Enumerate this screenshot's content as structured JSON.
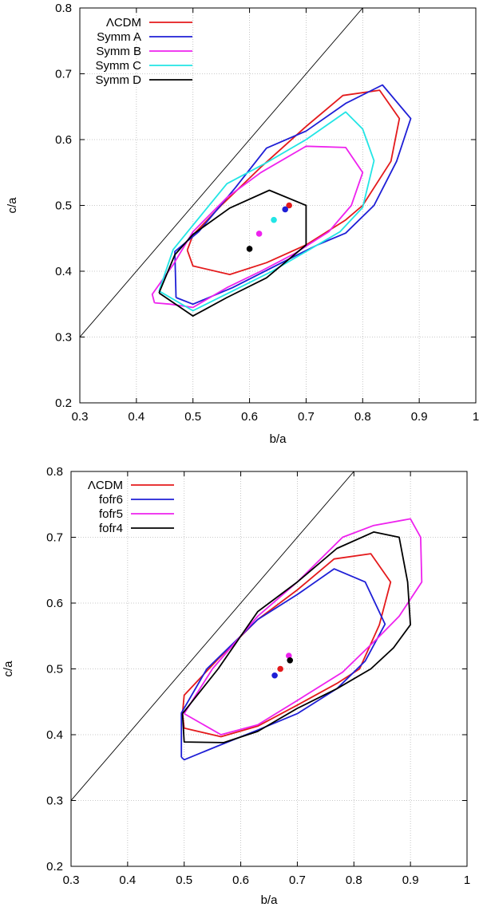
{
  "chart_data": [
    {
      "type": "line",
      "xlabel": "b/a",
      "ylabel": "c/a",
      "xlim": [
        0.3,
        1.0
      ],
      "ylim": [
        0.2,
        0.8
      ],
      "xticks": [
        "0.3",
        "0.4",
        "0.5",
        "0.6",
        "0.7",
        "0.8",
        "0.9",
        "1"
      ],
      "yticks": [
        "0.2",
        "0.3",
        "0.4",
        "0.5",
        "0.6",
        "0.7",
        "0.8"
      ],
      "grid": true,
      "legend_position": "top-left",
      "reference_line": {
        "x": [
          0.3,
          0.8
        ],
        "y": [
          0.3,
          0.8
        ]
      },
      "series": [
        {
          "name": "ΛCDM",
          "color": "#e41a1c",
          "contour": [
            [
              0.49,
              0.432
            ],
            [
              0.5,
              0.408
            ],
            [
              0.565,
              0.395
            ],
            [
              0.63,
              0.413
            ],
            [
              0.7,
              0.44
            ],
            [
              0.77,
              0.478
            ],
            [
              0.8,
              0.5
            ],
            [
              0.85,
              0.567
            ],
            [
              0.865,
              0.632
            ],
            [
              0.83,
              0.675
            ],
            [
              0.765,
              0.667
            ],
            [
              0.7,
              0.62
            ],
            [
              0.62,
              0.558
            ],
            [
              0.55,
              0.5
            ],
            [
              0.5,
              0.455
            ],
            [
              0.49,
              0.432
            ]
          ],
          "center": [
            0.67,
            0.5
          ]
        },
        {
          "name": "Symm A",
          "color": "#1f1fd6",
          "contour": [
            [
              0.47,
              0.36
            ],
            [
              0.5,
              0.35
            ],
            [
              0.57,
              0.375
            ],
            [
              0.65,
              0.41
            ],
            [
              0.72,
              0.44
            ],
            [
              0.77,
              0.458
            ],
            [
              0.82,
              0.5
            ],
            [
              0.86,
              0.567
            ],
            [
              0.885,
              0.632
            ],
            [
              0.835,
              0.683
            ],
            [
              0.77,
              0.655
            ],
            [
              0.7,
              0.613
            ],
            [
              0.63,
              0.587
            ],
            [
              0.575,
              0.527
            ],
            [
              0.51,
              0.46
            ],
            [
              0.468,
              0.43
            ],
            [
              0.47,
              0.36
            ]
          ],
          "center": [
            0.663,
            0.494
          ]
        },
        {
          "name": "Symm B",
          "color": "#ee22ee",
          "contour": [
            [
              0.432,
              0.352
            ],
            [
              0.46,
              0.35
            ],
            [
              0.5,
              0.345
            ],
            [
              0.56,
              0.375
            ],
            [
              0.62,
              0.4
            ],
            [
              0.68,
              0.427
            ],
            [
              0.74,
              0.46
            ],
            [
              0.78,
              0.5
            ],
            [
              0.8,
              0.55
            ],
            [
              0.77,
              0.588
            ],
            [
              0.7,
              0.59
            ],
            [
              0.62,
              0.55
            ],
            [
              0.56,
              0.512
            ],
            [
              0.5,
              0.46
            ],
            [
              0.465,
              0.41
            ],
            [
              0.428,
              0.365
            ],
            [
              0.432,
              0.352
            ]
          ],
          "center": [
            0.617,
            0.457
          ]
        },
        {
          "name": "Symm C",
          "color": "#22e5e5",
          "contour": [
            [
              0.44,
              0.37
            ],
            [
              0.5,
              0.34
            ],
            [
              0.57,
              0.37
            ],
            [
              0.64,
              0.4
            ],
            [
              0.7,
              0.43
            ],
            [
              0.76,
              0.46
            ],
            [
              0.8,
              0.497
            ],
            [
              0.82,
              0.568
            ],
            [
              0.8,
              0.616
            ],
            [
              0.77,
              0.642
            ],
            [
              0.7,
              0.6
            ],
            [
              0.63,
              0.565
            ],
            [
              0.56,
              0.533
            ],
            [
              0.5,
              0.47
            ],
            [
              0.465,
              0.433
            ],
            [
              0.44,
              0.37
            ]
          ],
          "center": [
            0.643,
            0.478
          ]
        },
        {
          "name": "Symm D",
          "color": "#000000",
          "contour": [
            [
              0.44,
              0.367
            ],
            [
              0.5,
              0.332
            ],
            [
              0.56,
              0.36
            ],
            [
              0.63,
              0.39
            ],
            [
              0.7,
              0.44
            ],
            [
              0.7,
              0.5
            ],
            [
              0.635,
              0.523
            ],
            [
              0.565,
              0.496
            ],
            [
              0.5,
              0.456
            ],
            [
              0.468,
              0.425
            ],
            [
              0.44,
              0.367
            ]
          ],
          "center": [
            0.6,
            0.434
          ]
        }
      ]
    },
    {
      "type": "line",
      "xlabel": "b/a",
      "ylabel": "c/a",
      "xlim": [
        0.3,
        1.0
      ],
      "ylim": [
        0.2,
        0.8
      ],
      "xticks": [
        "0.3",
        "0.4",
        "0.5",
        "0.6",
        "0.7",
        "0.8",
        "0.9",
        "1"
      ],
      "yticks": [
        "0.2",
        "0.3",
        "0.4",
        "0.5",
        "0.6",
        "0.7",
        "0.8"
      ],
      "grid": true,
      "legend_position": "top-left",
      "reference_line": {
        "x": [
          0.3,
          0.8
        ],
        "y": [
          0.3,
          0.8
        ]
      },
      "series": [
        {
          "name": "ΛCDM",
          "color": "#e41a1c",
          "contour": [
            [
              0.497,
              0.432
            ],
            [
              0.5,
              0.41
            ],
            [
              0.565,
              0.397
            ],
            [
              0.63,
              0.413
            ],
            [
              0.7,
              0.445
            ],
            [
              0.77,
              0.478
            ],
            [
              0.81,
              0.5
            ],
            [
              0.845,
              0.567
            ],
            [
              0.865,
              0.632
            ],
            [
              0.83,
              0.675
            ],
            [
              0.765,
              0.667
            ],
            [
              0.7,
              0.62
            ],
            [
              0.63,
              0.575
            ],
            [
              0.56,
              0.515
            ],
            [
              0.5,
              0.46
            ],
            [
              0.497,
              0.432
            ]
          ],
          "center": [
            0.67,
            0.5
          ]
        },
        {
          "name": "fofr6",
          "color": "#1f1fd6",
          "contour": [
            [
              0.495,
              0.366
            ],
            [
              0.5,
              0.362
            ],
            [
              0.56,
              0.383
            ],
            [
              0.63,
              0.407
            ],
            [
              0.7,
              0.432
            ],
            [
              0.77,
              0.47
            ],
            [
              0.82,
              0.512
            ],
            [
              0.855,
              0.568
            ],
            [
              0.82,
              0.632
            ],
            [
              0.765,
              0.652
            ],
            [
              0.7,
              0.613
            ],
            [
              0.63,
              0.575
            ],
            [
              0.54,
              0.5
            ],
            [
              0.495,
              0.433
            ],
            [
              0.495,
              0.366
            ]
          ],
          "center": [
            0.66,
            0.49
          ]
        },
        {
          "name": "fofr5",
          "color": "#ee22ee",
          "contour": [
            [
              0.5,
              0.432
            ],
            [
              0.565,
              0.4
            ],
            [
              0.63,
              0.415
            ],
            [
              0.7,
              0.452
            ],
            [
              0.78,
              0.495
            ],
            [
              0.84,
              0.545
            ],
            [
              0.88,
              0.58
            ],
            [
              0.92,
              0.632
            ],
            [
              0.918,
              0.7
            ],
            [
              0.9,
              0.728
            ],
            [
              0.835,
              0.718
            ],
            [
              0.78,
              0.7
            ],
            [
              0.7,
              0.632
            ],
            [
              0.63,
              0.58
            ],
            [
              0.55,
              0.5
            ],
            [
              0.5,
              0.432
            ]
          ],
          "center": [
            0.685,
            0.52
          ]
        },
        {
          "name": "fofr4",
          "color": "#000000",
          "contour": [
            [
              0.497,
              0.432
            ],
            [
              0.5,
              0.389
            ],
            [
              0.57,
              0.388
            ],
            [
              0.63,
              0.405
            ],
            [
              0.7,
              0.44
            ],
            [
              0.77,
              0.47
            ],
            [
              0.83,
              0.5
            ],
            [
              0.87,
              0.532
            ],
            [
              0.9,
              0.567
            ],
            [
              0.895,
              0.632
            ],
            [
              0.88,
              0.7
            ],
            [
              0.835,
              0.708
            ],
            [
              0.77,
              0.683
            ],
            [
              0.7,
              0.632
            ],
            [
              0.63,
              0.587
            ],
            [
              0.56,
              0.5
            ],
            [
              0.497,
              0.432
            ]
          ],
          "center": [
            0.687,
            0.513
          ]
        }
      ]
    }
  ]
}
